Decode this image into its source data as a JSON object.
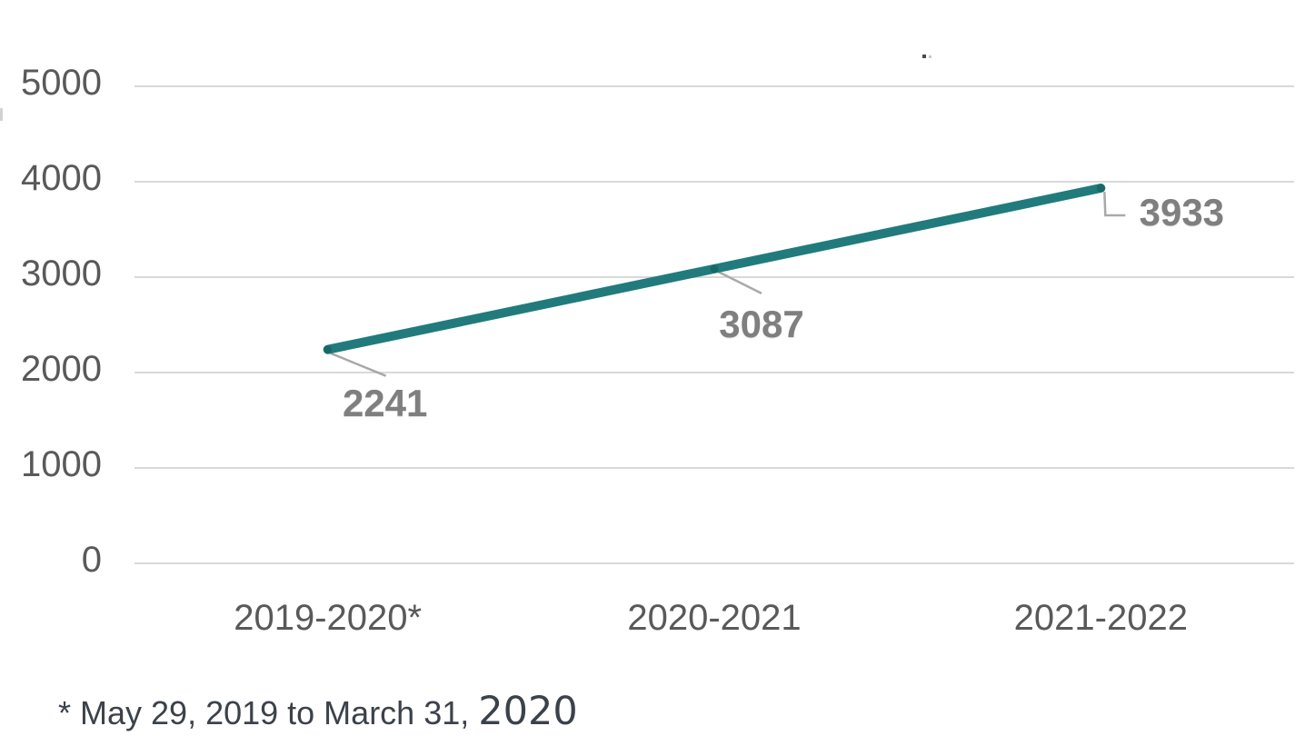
{
  "chart_data": {
    "type": "line",
    "title": "",
    "categories": [
      "2019-2020*",
      "2020-2021",
      "2021-2022"
    ],
    "series": [
      {
        "name": "",
        "values": [
          2241,
          3087,
          3933
        ]
      }
    ],
    "values": [
      2241,
      3087,
      3933
    ],
    "data_labels": [
      "2241",
      "3087",
      "3933"
    ],
    "yticks": [
      "5000",
      "4000",
      "3000",
      "2000",
      "1000",
      "0"
    ],
    "ytick_values": [
      5000,
      4000,
      3000,
      2000,
      1000,
      0
    ],
    "ylim": [
      0,
      5000
    ],
    "xlabel": "",
    "ylabel": "",
    "grid": "horizontal",
    "legend": "none",
    "footnote_prefix": "* May 29, 2019 to March 31, ",
    "footnote_year": "2020",
    "colors": {
      "line": "#217b7c",
      "marker": "#186868",
      "data_label": "#7f7f7f",
      "axis_text": "#595959",
      "gridline": "#d9d9d9",
      "leader_line": "#a9a9a9",
      "footnote_text": "#3c424a",
      "background": "#ffffff"
    }
  }
}
